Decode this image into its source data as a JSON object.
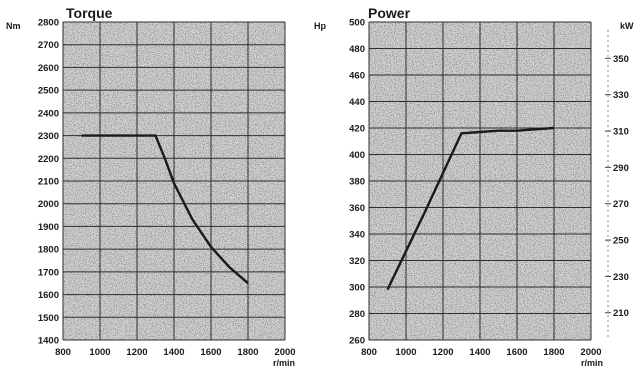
{
  "chart_data": [
    {
      "type": "line",
      "title": "Torque",
      "ylabel": "Nm",
      "xlabel": "r/min",
      "grid": true,
      "xlim": [
        800,
        2000
      ],
      "ylim": [
        1400,
        2800
      ],
      "xticks": [
        800,
        1000,
        1200,
        1400,
        1600,
        1800,
        2000
      ],
      "yticks": [
        1400,
        1500,
        1600,
        1700,
        1800,
        1900,
        2000,
        2100,
        2200,
        2300,
        2400,
        2500,
        2600,
        2700,
        2800
      ],
      "x": [
        900,
        1000,
        1100,
        1200,
        1300,
        1350,
        1400,
        1500,
        1600,
        1700,
        1800
      ],
      "y": [
        2300,
        2300,
        2300,
        2300,
        2300,
        2200,
        2090,
        1930,
        1810,
        1720,
        1650
      ],
      "line_color": "#1a1a1a"
    },
    {
      "type": "line",
      "title": "Power",
      "ylabel": "Hp",
      "ylabel_right": "kW",
      "xlabel": "r/min",
      "grid": true,
      "xlim": [
        800,
        2000
      ],
      "ylim": [
        260,
        500
      ],
      "ylim_right": [
        195,
        370
      ],
      "xticks": [
        800,
        1000,
        1200,
        1400,
        1600,
        1800,
        2000
      ],
      "yticks": [
        260,
        280,
        300,
        320,
        340,
        360,
        380,
        400,
        420,
        440,
        460,
        480,
        500
      ],
      "yticks_right": [
        210,
        230,
        250,
        270,
        290,
        310,
        330,
        350
      ],
      "x": [
        900,
        1000,
        1100,
        1200,
        1300,
        1400,
        1500,
        1600,
        1700,
        1800
      ],
      "y": [
        298,
        327,
        356,
        386,
        416,
        417,
        418,
        418,
        419,
        420
      ],
      "line_color": "#1a1a1a"
    }
  ]
}
